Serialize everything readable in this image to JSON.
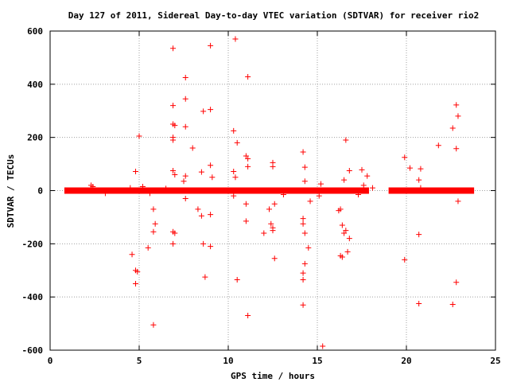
{
  "chart_data": {
    "type": "scatter",
    "title": "Day 127 of 2011, Sidereal Day-to-day VTEC variation (SDTVAR) for receiver rio2",
    "xlabel": "GPS time / hours",
    "ylabel": "SDTVAR / TECUs",
    "xlim": [
      0,
      25
    ],
    "ylim": [
      -600,
      600
    ],
    "x_ticks": [
      "0",
      "5",
      "10",
      "15",
      "20",
      "25"
    ],
    "y_ticks": [
      "600",
      "400",
      "200",
      "0",
      "-200",
      "-400",
      "-600"
    ],
    "grid": true,
    "marker": "+",
    "colors": {
      "series": "#ff0000",
      "grid": "#a0a0a0",
      "axis": "#000000"
    },
    "dense_bands": [
      {
        "x_start": 0.8,
        "x_end": 17.9,
        "y": 0
      },
      {
        "x_start": 19.0,
        "x_end": 23.8,
        "y": 0
      }
    ],
    "points": [
      [
        6.9,
        535
      ],
      [
        9.0,
        545
      ],
      [
        10.4,
        570
      ],
      [
        11.1,
        428
      ],
      [
        7.6,
        425
      ],
      [
        7.6,
        345
      ],
      [
        6.9,
        320
      ],
      [
        9.0,
        305
      ],
      [
        8.6,
        298
      ],
      [
        6.9,
        250
      ],
      [
        7.0,
        245
      ],
      [
        7.6,
        240
      ],
      [
        6.9,
        200
      ],
      [
        6.9,
        190
      ],
      [
        5.0,
        205
      ],
      [
        10.3,
        225
      ],
      [
        10.5,
        180
      ],
      [
        8.0,
        160
      ],
      [
        11.0,
        130
      ],
      [
        11.1,
        120
      ],
      [
        11.1,
        90
      ],
      [
        9.0,
        95
      ],
      [
        14.2,
        145
      ],
      [
        14.3,
        88
      ],
      [
        12.5,
        105
      ],
      [
        12.5,
        90
      ],
      [
        16.6,
        190
      ],
      [
        16.8,
        75
      ],
      [
        17.5,
        78
      ],
      [
        17.8,
        55
      ],
      [
        4.8,
        72
      ],
      [
        6.9,
        75
      ],
      [
        7.0,
        60
      ],
      [
        7.6,
        55
      ],
      [
        7.5,
        35
      ],
      [
        8.5,
        70
      ],
      [
        9.1,
        50
      ],
      [
        10.3,
        72
      ],
      [
        10.4,
        50
      ],
      [
        14.3,
        35
      ],
      [
        16.5,
        40
      ],
      [
        22.8,
        322
      ],
      [
        22.9,
        280
      ],
      [
        22.6,
        235
      ],
      [
        22.8,
        158
      ],
      [
        21.8,
        170
      ],
      [
        19.9,
        125
      ],
      [
        20.2,
        85
      ],
      [
        20.8,
        82
      ],
      [
        20.7,
        40
      ],
      [
        20.8,
        10
      ],
      [
        5.6,
        -10
      ],
      [
        5.8,
        -70
      ],
      [
        5.9,
        -125
      ],
      [
        5.8,
        -155
      ],
      [
        5.5,
        -215
      ],
      [
        5.8,
        -505
      ],
      [
        4.6,
        -240
      ],
      [
        4.8,
        -300
      ],
      [
        4.9,
        -305
      ],
      [
        4.8,
        -350
      ],
      [
        6.9,
        -155
      ],
      [
        7.0,
        -160
      ],
      [
        6.9,
        -200
      ],
      [
        7.6,
        -30
      ],
      [
        8.3,
        -70
      ],
      [
        8.5,
        -95
      ],
      [
        8.6,
        -200
      ],
      [
        9.0,
        -210
      ],
      [
        8.7,
        -325
      ],
      [
        10.5,
        -335
      ],
      [
        11.0,
        -115
      ],
      [
        11.1,
        -470
      ],
      [
        11.0,
        -50
      ],
      [
        12.0,
        -160
      ],
      [
        12.3,
        -70
      ],
      [
        12.4,
        -125
      ],
      [
        12.5,
        -140
      ],
      [
        12.5,
        -150
      ],
      [
        12.6,
        -255
      ],
      [
        12.6,
        -50
      ],
      [
        14.2,
        -105
      ],
      [
        14.2,
        -125
      ],
      [
        14.3,
        -160
      ],
      [
        14.5,
        -215
      ],
      [
        14.3,
        -275
      ],
      [
        14.2,
        -310
      ],
      [
        14.2,
        -335
      ],
      [
        14.2,
        -430
      ],
      [
        14.6,
        -40
      ],
      [
        16.2,
        -75
      ],
      [
        16.3,
        -70
      ],
      [
        16.4,
        -130
      ],
      [
        16.6,
        -150
      ],
      [
        16.5,
        -160
      ],
      [
        16.3,
        -245
      ],
      [
        16.4,
        -250
      ],
      [
        16.7,
        -230
      ],
      [
        16.8,
        -180
      ],
      [
        15.3,
        -585
      ],
      [
        19.9,
        -260
      ],
      [
        20.7,
        -165
      ],
      [
        20.7,
        -425
      ],
      [
        22.6,
        -428
      ],
      [
        22.8,
        -345
      ],
      [
        22.9,
        -40
      ],
      [
        9.0,
        -90
      ],
      [
        10.3,
        -20
      ],
      [
        13.1,
        -15
      ],
      [
        15.1,
        -20
      ],
      [
        17.3,
        -15
      ],
      [
        3.1,
        -10
      ],
      [
        2.3,
        20
      ],
      [
        2.4,
        15
      ],
      [
        5.2,
        15
      ],
      [
        15.2,
        25
      ],
      [
        17.6,
        20
      ],
      [
        18.1,
        10
      ],
      [
        4.5,
        10
      ],
      [
        6.5,
        8
      ]
    ]
  }
}
